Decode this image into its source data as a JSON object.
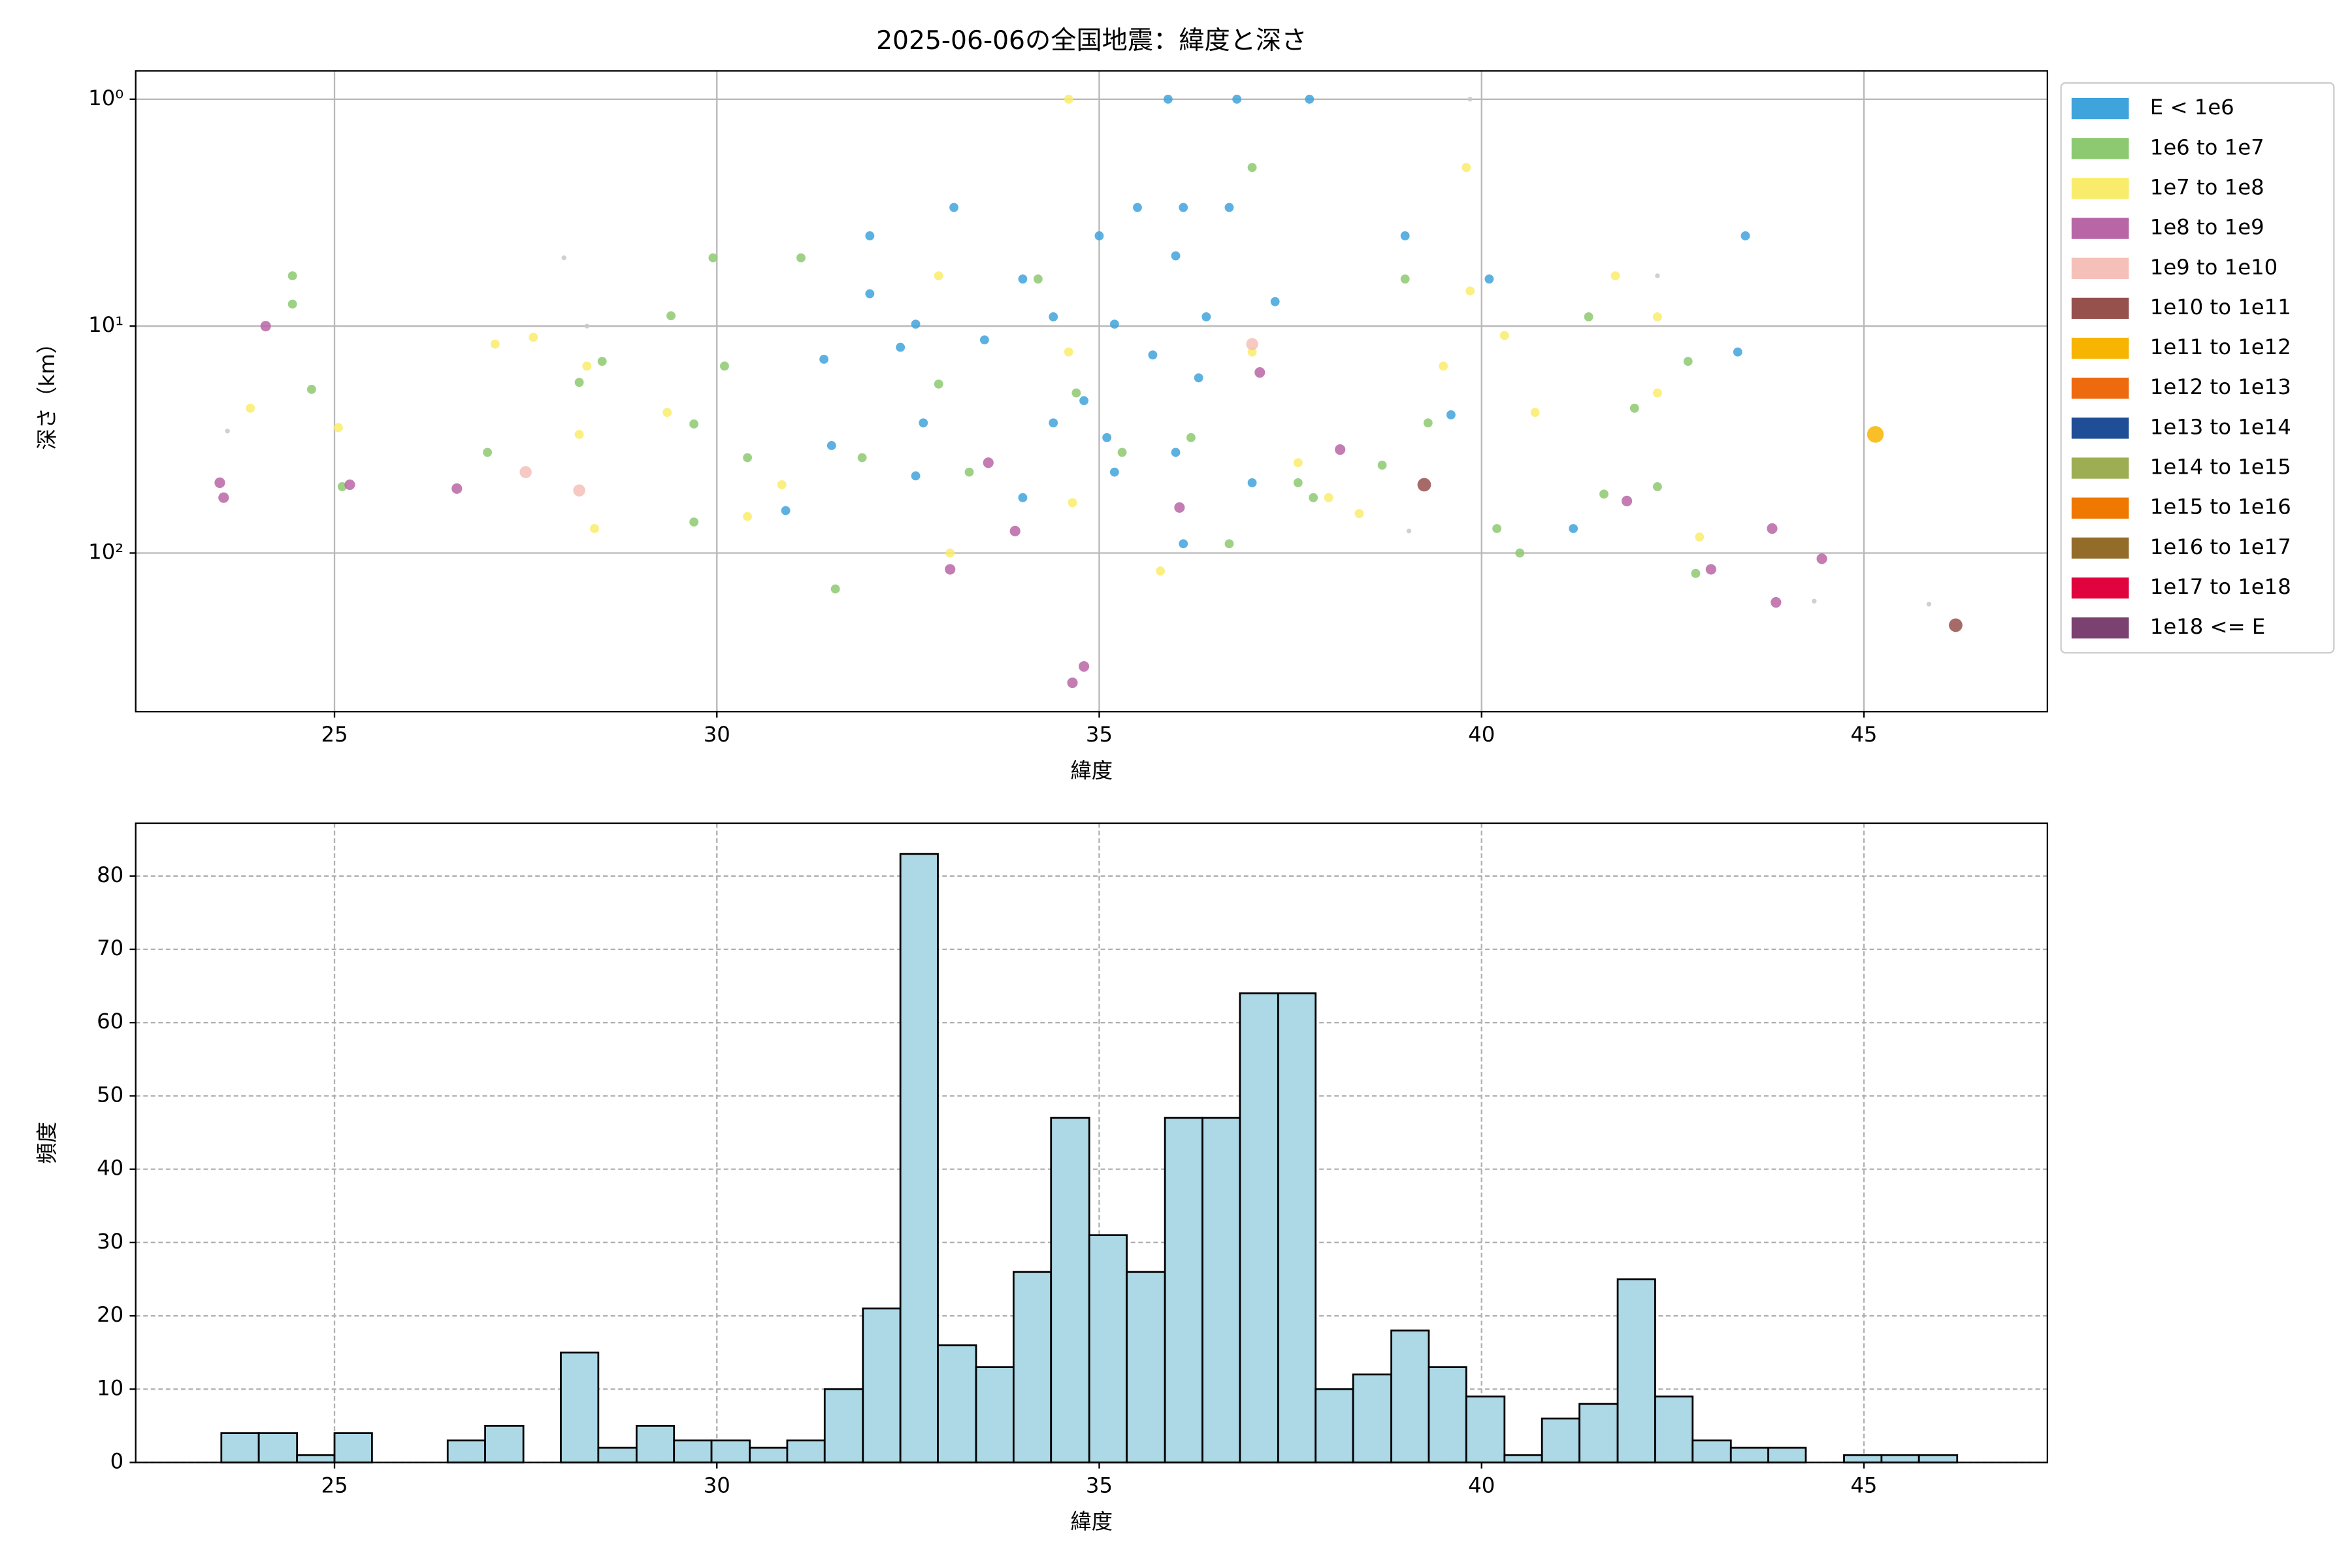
{
  "chart_data": [
    {
      "type": "scatter",
      "title": "2025-06-06の全国地震：緯度と深さ",
      "xlabel": "緯度",
      "ylabel": "深さ（km）",
      "xlim": [
        22.4,
        47.4
      ],
      "xticks": [
        25,
        30,
        35,
        40,
        45
      ],
      "ylim": [
        0.75,
        500
      ],
      "y_scale": "log",
      "y_inverted": true,
      "yticks": [
        {
          "value": 1,
          "label": "10⁰"
        },
        {
          "value": 10,
          "label": "10¹"
        },
        {
          "value": 100,
          "label": "10²"
        }
      ],
      "grid": true,
      "legend": "outside-right",
      "series": [
        {
          "name": "E < 1e6",
          "color": "#3fa3dc",
          "marker_size": 3,
          "x": [
            35.9,
            36.8,
            37.75,
            33.1,
            35.5,
            36.1,
            36.7,
            32.0,
            35.0,
            39.0,
            43.45,
            36.0,
            34.0,
            32.0,
            32.6,
            34.4,
            35.2,
            36.4,
            37.3,
            35.7,
            33.5,
            32.4,
            43.35,
            31.4,
            34.4,
            35.1,
            36.0,
            32.7,
            31.5,
            32.6,
            34.0,
            35.2,
            37.0,
            30.9,
            36.1,
            41.2,
            39.6,
            40.1,
            36.3,
            34.8
          ],
          "values": [
            1.0,
            1.0,
            1.0,
            3.0,
            3.0,
            3.0,
            3.0,
            4.0,
            4.0,
            4.0,
            4.0,
            4.9,
            6.2,
            7.2,
            9.8,
            9.1,
            9.8,
            9.1,
            7.8,
            13.4,
            11.5,
            12.4,
            13,
            14,
            26.7,
            31,
            36,
            26.7,
            33.6,
            45.7,
            57,
            44,
            49,
            65,
            91,
            78,
            24.6,
            6.2,
            16.9,
            21.3
          ]
        },
        {
          "name": "1e6 to 1e7",
          "color": "#8dc970",
          "marker_size": 3,
          "x": [
            24.45,
            24.45,
            24.7,
            25.1,
            29.95,
            31.1,
            29.4,
            30.1,
            29.7,
            30.4,
            29.7,
            31.55,
            31.9,
            32.9,
            33.3,
            34.2,
            34.7,
            35.3,
            37.0,
            36.2,
            36.7,
            37.6,
            37.8,
            38.7,
            39.3,
            40.2,
            40.5,
            41.4,
            41.6,
            42.0,
            42.3,
            42.8,
            42.7,
            39.0,
            28.2,
            28.5,
            27.0
          ],
          "values": [
            6.0,
            8.0,
            19,
            51,
            5.0,
            5.0,
            9.0,
            15,
            27,
            38,
            73,
            144,
            38,
            18,
            44,
            6.2,
            19.7,
            36,
            2.0,
            31,
            91,
            49,
            57,
            41,
            26.7,
            78,
            100,
            9.1,
            55,
            23,
            51,
            123,
            14.3,
            6.2,
            17.7,
            14.3,
            36
          ]
        },
        {
          "name": "1e7 to 1e8",
          "color": "#f9ec6a",
          "marker_size": 3,
          "x": [
            34.6,
            39.8,
            41.75,
            42.3,
            42.3,
            40.7,
            23.9,
            25.05,
            27.1,
            27.6,
            28.3,
            28.2,
            28.4,
            29.35,
            30.4,
            30.85,
            33.05,
            32.9,
            34.6,
            34.65,
            35.8,
            37.0,
            37.6,
            38.0,
            38.4,
            39.5,
            39.85,
            40.3,
            42.85
          ],
          "values": [
            1.0,
            2.0,
            6.0,
            9.1,
            19.7,
            24,
            23,
            28,
            12,
            11.2,
            15,
            30,
            78,
            24,
            69,
            50,
            100,
            6.0,
            13,
            60,
            120,
            13,
            40,
            57,
            67,
            15,
            7,
            11,
            85
          ]
        },
        {
          "name": "1e8 to 1e9",
          "color": "#b866a6",
          "marker_size": 3.5,
          "x": [
            23.5,
            23.55,
            24.1,
            25.2,
            26.6,
            33.05,
            33.55,
            33.9,
            34.65,
            34.8,
            36.05,
            37.1,
            38.15,
            41.9,
            43.0,
            43.8,
            43.85,
            44.45
          ],
          "values": [
            49,
            57,
            10,
            50,
            52,
            118,
            40,
            80,
            373,
            316,
            63,
            16,
            35,
            59,
            118,
            78,
            165,
            106
          ]
        },
        {
          "name": "1e9 to 1e10",
          "color": "#f5c0b8",
          "marker_size": 4,
          "x": [
            27.5,
            28.2,
            37.0
          ],
          "values": [
            44,
            53,
            12
          ]
        },
        {
          "name": "1e10 to 1e11",
          "color": "#96514d",
          "marker_size": 4.5,
          "x": [
            39.25,
            46.2
          ],
          "values": [
            50,
            208
          ]
        },
        {
          "name": "1e11 to 1e12",
          "color": "#f7b400",
          "marker_size": 5.5,
          "x": [
            45.15
          ],
          "values": [
            30
          ]
        },
        {
          "name": "1e12 to 1e13",
          "color": "#ee6a0f",
          "marker_size": 6,
          "x": [],
          "values": []
        },
        {
          "name": "1e13 to 1e14",
          "color": "#1f4e96",
          "marker_size": 6.5,
          "x": [],
          "values": []
        },
        {
          "name": "1e14 to 1e15",
          "color": "#9dad52",
          "marker_size": 7,
          "x": [],
          "values": []
        },
        {
          "name": "1e15 to 1e16",
          "color": "#ee7800",
          "marker_size": 7.5,
          "x": [],
          "values": []
        },
        {
          "name": "1e16 to 1e17",
          "color": "#946c2a",
          "marker_size": 8,
          "x": [],
          "values": []
        },
        {
          "name": "1e17 to 1e18",
          "color": "#e0033e",
          "marker_size": 8.5,
          "x": [],
          "values": []
        },
        {
          "name": "1e18 <= E",
          "color": "#7a4171",
          "marker_size": 9,
          "x": [],
          "values": []
        },
        {
          "color": "#c8c8c8",
          "marker_size": 1.6,
          "x": [
            23.6,
            28.0,
            28.3,
            42.3,
            44.35,
            45.85,
            39.85,
            39.05
          ],
          "values": [
            29,
            5.0,
            10,
            6,
            163,
            168,
            1.0,
            80
          ]
        }
      ]
    },
    {
      "type": "histogram",
      "xlabel": "緯度",
      "ylabel": "頻度",
      "color": "#add8e6",
      "edgecolor": "#000000",
      "xlim": [
        22.4,
        47.4
      ],
      "xticks": [
        25,
        30,
        35,
        40,
        45
      ],
      "ylim": [
        0,
        87.2
      ],
      "yticks": [
        0,
        10,
        20,
        30,
        40,
        50,
        60,
        70,
        80
      ],
      "grid": "dashed",
      "bins": [
        23.52,
        24.01,
        24.51,
        25.0,
        25.49,
        25.99,
        26.48,
        26.97,
        27.47,
        27.96,
        28.45,
        28.95,
        29.44,
        29.93,
        30.43,
        30.92,
        31.41,
        31.91,
        32.4,
        32.89,
        33.39,
        33.88,
        34.37,
        34.87,
        35.36,
        35.86,
        36.35,
        36.84,
        37.34,
        37.83,
        38.32,
        38.82,
        39.31,
        39.8,
        40.3,
        40.79,
        41.28,
        41.78,
        42.27,
        42.76,
        43.26,
        43.75,
        44.24,
        44.74,
        45.23,
        45.72,
        46.22
      ],
      "values": [
        4,
        4,
        1,
        4,
        0,
        0,
        3,
        5,
        0,
        15,
        2,
        5,
        3,
        3,
        2,
        3,
        10,
        21,
        83,
        16,
        13,
        26,
        47,
        31,
        26,
        47,
        47,
        64,
        64,
        10,
        12,
        18,
        13,
        9,
        1,
        6,
        8,
        25,
        9,
        3,
        2,
        2,
        0,
        1,
        1,
        1
      ]
    }
  ]
}
